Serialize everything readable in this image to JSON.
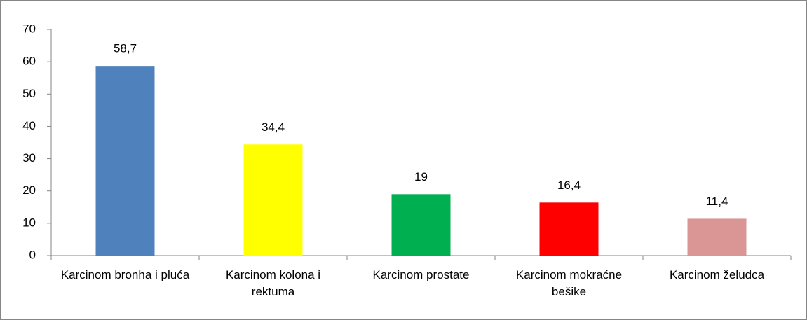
{
  "chart_data": {
    "type": "bar",
    "categories": [
      "Karcinom bronha i pluća",
      "Karcinom kolona i rektuma",
      "Karcinom prostate",
      "Karcinom mokraćne bešike",
      "Karcinom želudca"
    ],
    "values": [
      58.7,
      34.4,
      19,
      16.4,
      11.4
    ],
    "value_labels": [
      "58,7",
      "34,4",
      "19",
      "16,4",
      "11,4"
    ],
    "colors": [
      "#4f81bd",
      "#ffff00",
      "#00b050",
      "#ff0000",
      "#d99694"
    ],
    "ylim": [
      0,
      70
    ],
    "yticks": [
      0,
      10,
      20,
      30,
      40,
      50,
      60,
      70
    ],
    "grid": false
  }
}
